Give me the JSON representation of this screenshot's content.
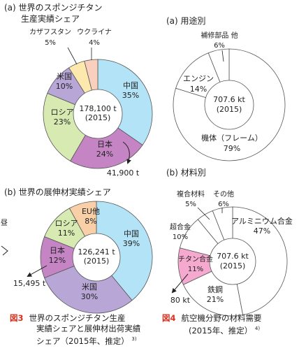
{
  "chart_data": [
    {
      "type": "pie",
      "title_line1": "(a) 世界のスポンジチタン",
      "title_line2": "生産実績シェア",
      "center_line1": "178,100 t",
      "center_line2": "(2015)",
      "slices": [
        {
          "name": "中国",
          "value": 35,
          "label": "35%",
          "color": "#b3e3f6"
        },
        {
          "name": "日本",
          "value": 24,
          "label": "24%",
          "color": "#c585c5"
        },
        {
          "name": "ロシア",
          "value": 23,
          "label": "23%",
          "color": "#d7eab2"
        },
        {
          "name": "米国",
          "value": 10,
          "label": "10%",
          "color": "#b7a6d6"
        },
        {
          "name": "カザフスタン",
          "value": 5,
          "label": "5%",
          "color": "#fde9ad"
        },
        {
          "name": "ウクライナ",
          "value": 4,
          "label": "4%",
          "color": "#f9cfbd"
        }
      ],
      "callout": "41,900 t"
    },
    {
      "type": "pie",
      "title_line1": "(b) 世界の展伸材実績シェア",
      "center_line1": "126,241 t",
      "center_line2": "(2015)",
      "slices": [
        {
          "name": "中国",
          "value": 39,
          "label": "39%",
          "color": "#b3e3f6"
        },
        {
          "name": "米国",
          "value": 30,
          "label": "30%",
          "color": "#b7a6d6"
        },
        {
          "name": "日本",
          "value": 12,
          "label": "12%",
          "color": "#c585c5"
        },
        {
          "name": "ロシア",
          "value": 11,
          "label": "11%",
          "color": "#d7eab2"
        },
        {
          "name": "EU他",
          "value": 8,
          "label": "8%",
          "color": "#f9cfa8"
        }
      ],
      "callout": "15,495 t"
    },
    {
      "type": "pie",
      "title_line1": "(a) 用途別",
      "center_line1": "707.6 kt",
      "center_line2": "(2015)",
      "slices": [
        {
          "name": "機体（フレーム）",
          "value": 79,
          "label": "79%",
          "color": "#ffffff"
        },
        {
          "name": "エンジン",
          "value": 14,
          "label": "14%",
          "color": "#ffffff"
        },
        {
          "name": "補修部品 他",
          "value": 6,
          "label": "6%",
          "color": "#ffffff"
        }
      ]
    },
    {
      "type": "pie",
      "title_line1": "(b) 材料別",
      "center_line1": "707.6 kt",
      "center_line2": "(2015)",
      "slices": [
        {
          "name": "アルミニウム合金",
          "value": 47,
          "label": "47%",
          "color": "#ffffff"
        },
        {
          "name": "鉄鋼",
          "value": 21,
          "label": "21%",
          "color": "#ffffff"
        },
        {
          "name": "チタン合金",
          "value": 11,
          "label": "11%",
          "color": "#f5a9cf"
        },
        {
          "name": "超合金",
          "value": 10,
          "label": "10%",
          "color": "#ffffff"
        },
        {
          "name": "複合材料",
          "value": 5,
          "label": "5%",
          "color": "#ffffff"
        },
        {
          "name": "その他",
          "value": 6,
          "label": "6%",
          "color": "#ffffff"
        }
      ],
      "callout": "80 kt"
    }
  ],
  "captions": {
    "fig3_label": "図3",
    "fig3_line1": "世界のスポンジチタン生産",
    "fig3_line2": "実績シェアと展伸材出荷実績",
    "fig3_line3": "シェア（2015年、推定）",
    "fig3_ref": "3)",
    "fig4_label": "図4",
    "fig4_line1": "航空機分野の材料需要",
    "fig4_line2": "(2015年、推定）",
    "fig4_ref": "4)"
  },
  "colors": {
    "accent": "#d9301f",
    "outline": "#555555"
  }
}
